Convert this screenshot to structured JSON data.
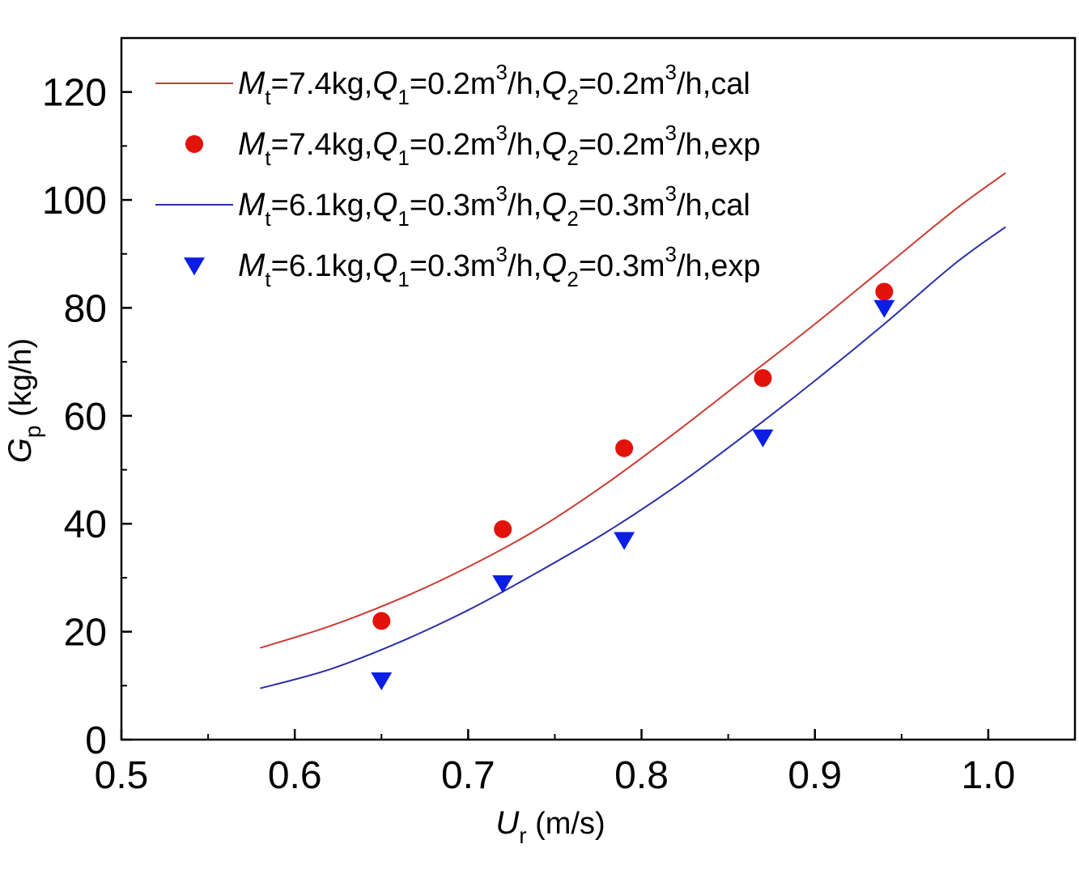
{
  "chart_data": {
    "type": "line",
    "title": "",
    "xlabel": {
      "main": "U",
      "sub": "r",
      "unit": " (m/s)"
    },
    "ylabel": {
      "main": "G",
      "sub": "p",
      "unit": " (kg/h)"
    },
    "xlim": [
      0.5,
      1.05
    ],
    "ylim": [
      0,
      130
    ],
    "xticks": [
      0.5,
      0.6,
      0.7,
      0.8,
      0.9,
      1.0
    ],
    "xtick_labels": [
      "0.5",
      "0.6",
      "0.7",
      "0.8",
      "0.9",
      "1.0"
    ],
    "yticks": [
      0,
      20,
      40,
      60,
      80,
      100,
      120
    ],
    "ytick_labels": [
      "0",
      "20",
      "40",
      "60",
      "80",
      "100",
      "120"
    ],
    "grid": false,
    "legend_position": "top-left",
    "colors": {
      "red": "#e3120b",
      "blue": "#0b1ee3",
      "red_line": "#cc3b33",
      "blue_line": "#2b2fa8"
    },
    "series": [
      {
        "name": "Mt=7.4kg,Q1=0.2m3/h,Q2=0.2m3/h,cal",
        "legend_parts": [
          "M",
          "t",
          "=7.4kg,",
          "Q",
          "1",
          "=0.2m",
          "3",
          "/h,",
          "Q",
          "2",
          "=0.2m",
          "3",
          "/h,cal"
        ],
        "kind": "line",
        "color": "#cc3b33",
        "x": [
          0.58,
          0.62,
          0.66,
          0.7,
          0.74,
          0.78,
          0.82,
          0.86,
          0.9,
          0.94,
          0.98,
          1.01
        ],
        "y": [
          17.0,
          21.0,
          26.0,
          32.0,
          39.0,
          47.5,
          57.0,
          67.0,
          77.0,
          87.5,
          98.0,
          105.0
        ]
      },
      {
        "name": "Mt=7.4kg,Q1=0.2m3/h,Q2=0.2m3/h,exp",
        "legend_parts": [
          "M",
          "t",
          "=7.4kg,",
          "Q",
          "1",
          "=0.2m",
          "3",
          "/h,",
          "Q",
          "2",
          "=0.2m",
          "3",
          "/h,exp"
        ],
        "kind": "scatter",
        "marker": "circle",
        "color": "#e3120b",
        "x": [
          0.65,
          0.72,
          0.79,
          0.87,
          0.94
        ],
        "y": [
          22,
          39,
          54,
          67,
          83
        ]
      },
      {
        "name": "Mt=6.1kg,Q1=0.3m3/h,Q2=0.3m3/h,cal",
        "legend_parts": [
          "M",
          "t",
          "=6.1kg,",
          "Q",
          "1",
          "=0.3m",
          "3",
          "/h,",
          "Q",
          "2",
          "=0.3m",
          "3",
          "/h,cal"
        ],
        "kind": "line",
        "color": "#2b2fa8",
        "x": [
          0.58,
          0.62,
          0.66,
          0.7,
          0.74,
          0.78,
          0.82,
          0.86,
          0.9,
          0.94,
          0.98,
          1.01
        ],
        "y": [
          9.5,
          13.0,
          18.0,
          24.0,
          31.0,
          38.5,
          47.0,
          56.5,
          66.5,
          77.0,
          88.0,
          95.0
        ]
      },
      {
        "name": "Mt=6.1kg,Q1=0.3m3/h,Q2=0.3m3/h,exp",
        "legend_parts": [
          "M",
          "t",
          "=6.1kg,",
          "Q",
          "1",
          "=0.3m",
          "3",
          "/h,",
          "Q",
          "2",
          "=0.3m",
          "3",
          "/h,exp"
        ],
        "kind": "scatter",
        "marker": "triangle-down",
        "color": "#0b1ee3",
        "x": [
          0.65,
          0.72,
          0.79,
          0.87,
          0.94
        ],
        "y": [
          11,
          29,
          37,
          56,
          80
        ]
      }
    ]
  }
}
